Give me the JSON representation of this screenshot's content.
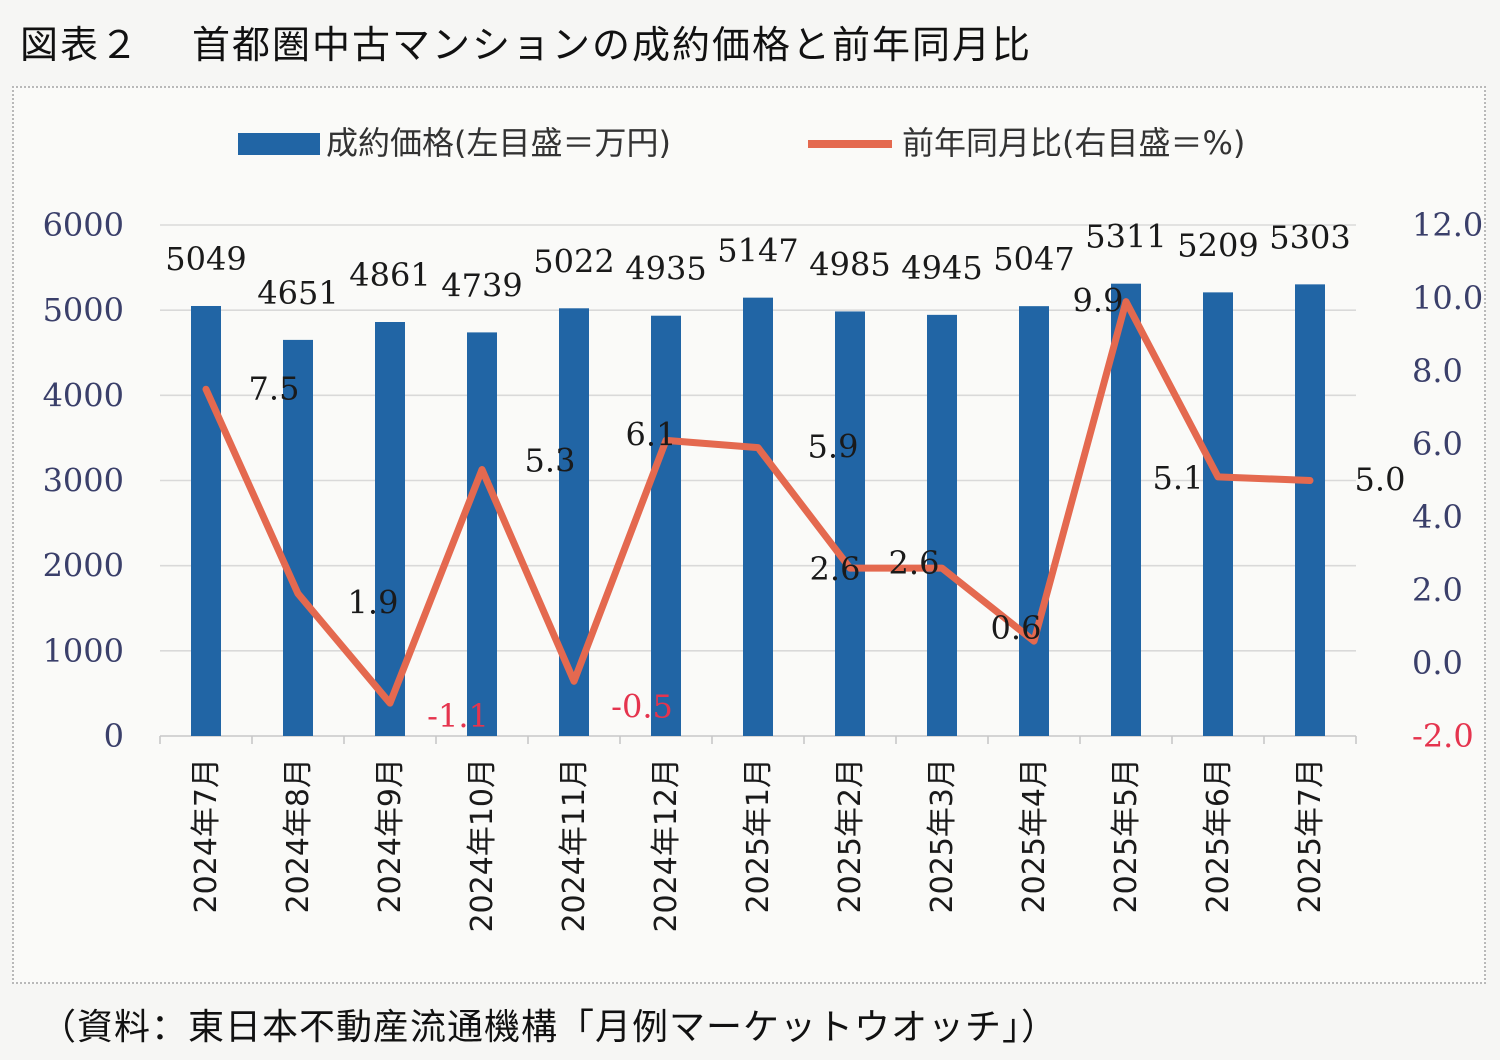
{
  "figure": {
    "label": "図表２",
    "title": "首都圏中古マンションの成約価格と前年同月比",
    "source": "（資料：東日本不動産流通機構「月例マーケットウオッチ」）"
  },
  "colors": {
    "bar": "#2165a5",
    "line": "#e4694f",
    "negative_label": "#e5344e",
    "grid": "#d9d9d9",
    "axis_text": "#3a3f6a"
  },
  "chart_data": {
    "type": "bar",
    "categories": [
      "2024年7月",
      "2024年8月",
      "2024年9月",
      "2024年10月",
      "2024年11月",
      "2024年12月",
      "2025年1月",
      "2025年2月",
      "2025年3月",
      "2025年4月",
      "2025年5月",
      "2025年6月",
      "2025年7月"
    ],
    "series": [
      {
        "name": "成約価格(左目盛＝万円)",
        "type": "bar",
        "axis": "left",
        "values": [
          5049,
          4651,
          4861,
          4739,
          5022,
          4935,
          5147,
          4985,
          4945,
          5047,
          5311,
          5209,
          5303
        ],
        "labels": [
          "5049",
          "4651",
          "4861",
          "4739",
          "5022",
          "4935",
          "5147",
          "4985",
          "4945",
          "5047",
          "5311",
          "5209",
          "5303"
        ]
      },
      {
        "name": "前年同月比(右目盛＝%)",
        "type": "line",
        "axis": "right",
        "values": [
          7.5,
          1.9,
          -1.1,
          5.3,
          -0.5,
          6.1,
          5.9,
          2.6,
          2.6,
          0.6,
          9.9,
          5.1,
          5.0
        ],
        "labels": [
          "7.5",
          "1.9",
          "-1.1",
          "5.3",
          "-0.5",
          "6.1",
          "5.9",
          "2.6",
          "2.6",
          "0.6",
          "9.9",
          "5.1",
          "5.0"
        ]
      }
    ],
    "y_left": {
      "min": 0,
      "max": 6000,
      "ticks": [
        "0",
        "1000",
        "2000",
        "3000",
        "4000",
        "5000",
        "6000"
      ]
    },
    "y_right": {
      "min": -2.0,
      "max": 12.0,
      "ticks": [
        "-2.0",
        "0.0",
        "2.0",
        "4.0",
        "6.0",
        "8.0",
        "10.0",
        "12.0"
      ]
    },
    "grid": true,
    "legend": "top-center"
  }
}
